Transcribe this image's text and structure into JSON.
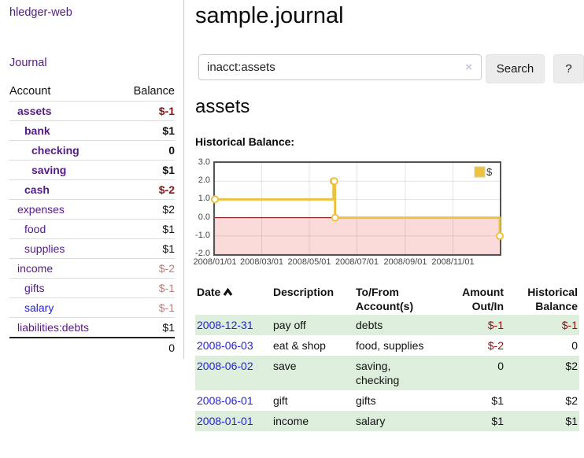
{
  "sidebar": {
    "brand": "hledger-web",
    "journal_link": "Journal",
    "columns": {
      "account": "Account",
      "balance": "Balance"
    },
    "accounts": [
      {
        "name": "assets",
        "balance": "$-1",
        "level": 0,
        "bold": true,
        "name_tone": "purple",
        "balance_tone": "dark-red"
      },
      {
        "name": "bank",
        "balance": "$1",
        "level": 1,
        "bold": true,
        "name_tone": "purple",
        "balance_tone": "normal"
      },
      {
        "name": "checking",
        "balance": "0",
        "level": 2,
        "bold": true,
        "name_tone": "purple",
        "balance_tone": "normal"
      },
      {
        "name": "saving",
        "balance": "$1",
        "level": 2,
        "bold": true,
        "name_tone": "purple",
        "balance_tone": "normal"
      },
      {
        "name": "cash",
        "balance": "$-2",
        "level": 1,
        "bold": true,
        "name_tone": "purple",
        "balance_tone": "dark-red"
      },
      {
        "name": "expenses",
        "balance": "$2",
        "level": 0,
        "bold": false,
        "name_tone": "purple",
        "balance_tone": "normal"
      },
      {
        "name": "food",
        "balance": "$1",
        "level": 1,
        "bold": false,
        "name_tone": "purple",
        "balance_tone": "normal"
      },
      {
        "name": "supplies",
        "balance": "$1",
        "level": 1,
        "bold": false,
        "name_tone": "purple",
        "balance_tone": "normal"
      },
      {
        "name": "income",
        "balance": "$-2",
        "level": 0,
        "bold": false,
        "name_tone": "purple",
        "balance_tone": "rose"
      },
      {
        "name": "gifts",
        "balance": "$-1",
        "level": 1,
        "bold": false,
        "name_tone": "purple",
        "balance_tone": "rose"
      },
      {
        "name": "salary",
        "balance": "$-1",
        "level": 1,
        "bold": false,
        "name_tone": "blue",
        "balance_tone": "rose"
      },
      {
        "name": "liabilities:debts",
        "balance": "$1",
        "level": 0,
        "bold": false,
        "name_tone": "purple",
        "balance_tone": "normal"
      }
    ],
    "total": "0"
  },
  "main": {
    "title": "sample.journal",
    "search": {
      "value": "inacct:assets",
      "clear_symbol": "×",
      "button_label": "Search",
      "help_label": "?"
    },
    "account_heading": "assets",
    "chart_title": "Historical Balance:"
  },
  "chart_data": {
    "type": "line",
    "step": true,
    "title": "Historical Balance",
    "series": [
      {
        "name": "$",
        "color": "#edc240",
        "points": [
          [
            "2008-01-01",
            1
          ],
          [
            "2008-06-01",
            2
          ],
          [
            "2008-06-02",
            2
          ],
          [
            "2008-06-03",
            0
          ],
          [
            "2008-12-31",
            -1
          ]
        ]
      }
    ],
    "ylim": [
      -2,
      3
    ],
    "yticks": [
      3,
      2,
      1,
      0,
      -1,
      -2
    ],
    "ytick_labels": [
      "3.0",
      "2.0",
      "1.0",
      "0.0",
      "-1.0",
      "-2.0"
    ],
    "xticks": [
      "2008/01/01",
      "2008/03/01",
      "2008/05/01",
      "2008/07/01",
      "2008/09/01",
      "2008/11/01"
    ],
    "x_range": [
      "2008-01-01",
      "2008-12-31"
    ],
    "grid": true,
    "legend_position": "top-right",
    "legend_label": "$",
    "negative_region_color": "#fbdada",
    "zero_line_color": "#8b0000",
    "grid_color": "rgba(90,90,90,0.16)",
    "marker_fill": "#ffffff"
  },
  "register": {
    "headers": {
      "date": "Date",
      "description": "Description",
      "accounts": "To/From Account(s)",
      "amount": "Amount Out/In",
      "balance": "Historical Balance"
    },
    "sort": {
      "column": "date",
      "direction": "ascending"
    },
    "rows": [
      {
        "date": "2008-12-31",
        "description": "pay off",
        "accounts": "debts",
        "amount": "$-1",
        "balance": "$-1",
        "amount_negative": true,
        "balance_negative": true
      },
      {
        "date": "2008-06-03",
        "description": "eat & shop",
        "accounts": "food, supplies",
        "amount": "$-2",
        "balance": "0",
        "amount_negative": true,
        "balance_negative": false
      },
      {
        "date": "2008-06-02",
        "description": "save",
        "accounts": "saving, checking",
        "amount": "0",
        "balance": "$2",
        "amount_negative": false,
        "balance_negative": false
      },
      {
        "date": "2008-06-01",
        "description": "gift",
        "accounts": "gifts",
        "amount": "$1",
        "balance": "$2",
        "amount_negative": false,
        "balance_negative": false
      },
      {
        "date": "2008-01-01",
        "description": "income",
        "accounts": "salary",
        "amount": "$1",
        "balance": "$1",
        "amount_negative": false,
        "balance_negative": false
      }
    ]
  },
  "colors": {
    "link_purple": "#551a8b",
    "link_blue": "#2222dd",
    "negative_dark": "#8b1111",
    "negative_rose": "#bc7c7c",
    "row_stripe_green": "#ddeedd",
    "chart_series_gold": "#edc240"
  }
}
